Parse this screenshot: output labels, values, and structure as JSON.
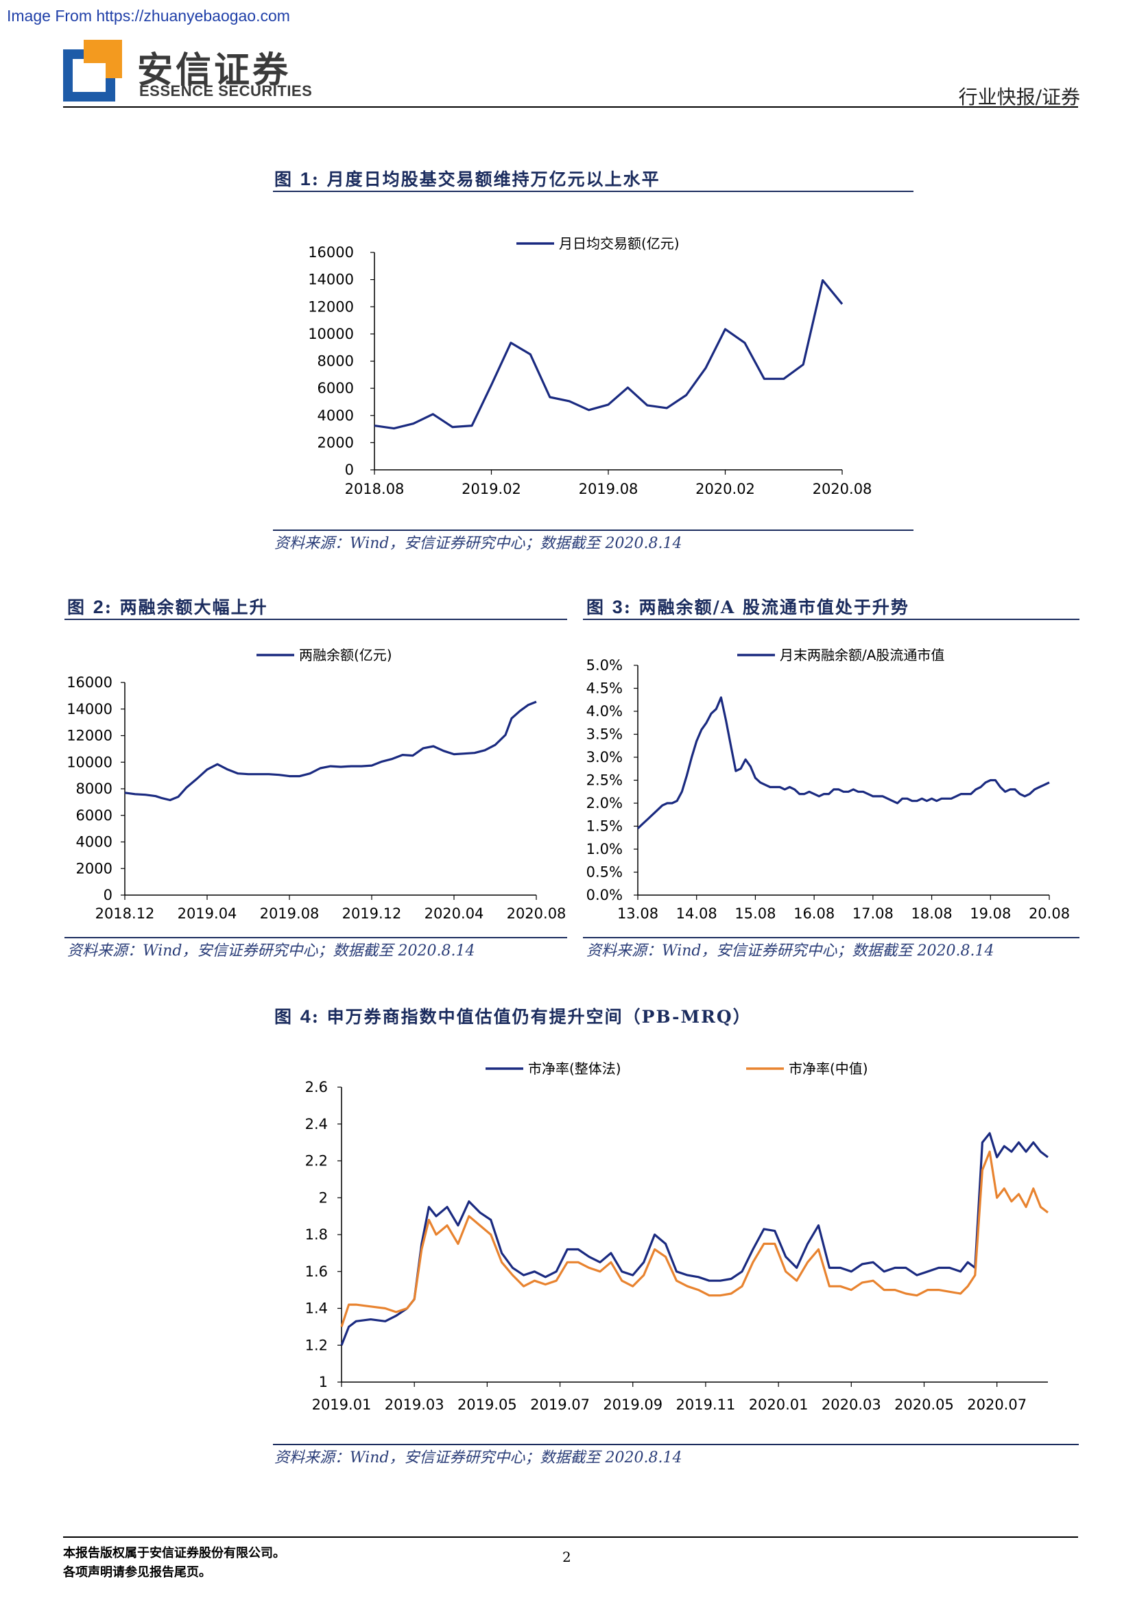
{
  "watermark": "Image From https://zhuanyebaogao.com",
  "header": {
    "logo_cn": "安信证券",
    "logo_en": "ESSENCE SECURITIES",
    "category": "行业快报/证券"
  },
  "figures": {
    "fig1": {
      "label": "图 ",
      "num": "1",
      "title": ": 月度日均股基交易额维持万亿元以上水平",
      "source": "资料来源：Wind，安信证券研究中心；数据截至 2020.8.14"
    },
    "fig2": {
      "label": "图 ",
      "num": "2",
      "title": ": 两融余额大幅上升",
      "source": "资料来源：Wind，安信证券研究中心；数据截至 2020.8.14"
    },
    "fig3": {
      "label": "图 ",
      "num": "3",
      "title": ": 两融余额/A 股流通市值处于升势",
      "source": "资料来源：Wind，安信证券研究中心；数据截至 2020.8.14"
    },
    "fig4": {
      "label": "图 ",
      "num": "4",
      "title": ": 申万券商指数中值估值仍有提升空间（PB-MRQ）",
      "source": "资料来源：Wind，安信证券研究中心；数据截至 2020.8.14"
    }
  },
  "footer": {
    "line1": "本报告版权属于安信证券股份有限公司。",
    "line2": "各项声明请参见报告尾页。",
    "page": "2"
  },
  "colors": {
    "navy": "#1a2a80",
    "orange": "#e8832f",
    "title_navy": "#1b2c5e",
    "logo_blue": "#1d5ba8",
    "logo_orange": "#f39a1f"
  },
  "chart_data": [
    {
      "id": "fig1",
      "type": "line",
      "ylim": [
        0,
        16000
      ],
      "yticks": [
        "0",
        "2000",
        "4000",
        "6000",
        "8000",
        "10000",
        "12000",
        "14000",
        "16000"
      ],
      "xticks": [
        "2018.08",
        "2019.02",
        "2019.08",
        "2020.02",
        "2020.08"
      ],
      "x_range": [
        0,
        24
      ],
      "series": [
        {
          "name": "月日均交易额(亿元)",
          "color": "#1a2a80",
          "values": [
            3250,
            3050,
            3400,
            4100,
            3150,
            3250,
            6250,
            9350,
            8500,
            5350,
            5050,
            4400,
            4800,
            6050,
            4750,
            4550,
            5500,
            7500,
            10350,
            9350,
            6700,
            6700,
            7750,
            13950,
            12200
          ]
        }
      ]
    },
    {
      "id": "fig2",
      "type": "line",
      "ylim": [
        0,
        16000
      ],
      "yticks": [
        "0",
        "2000",
        "4000",
        "6000",
        "8000",
        "10000",
        "12000",
        "14000",
        "16000"
      ],
      "xticks": [
        "2018.12",
        "2019.04",
        "2019.08",
        "2019.12",
        "2020.04",
        "2020.08"
      ],
      "x_range": [
        0,
        20
      ],
      "series": [
        {
          "name": "两融余额(亿元)",
          "color": "#1a2a80",
          "x": [
            0,
            0.5,
            1,
            1.5,
            1.8,
            2.2,
            2.6,
            3,
            3.5,
            4,
            4.5,
            5,
            5.5,
            6,
            6.5,
            7,
            7.5,
            8,
            8.5,
            9,
            9.5,
            10,
            10.5,
            11,
            11.5,
            12,
            12.5,
            13,
            13.5,
            14,
            14.5,
            15,
            15.5,
            16,
            16.5,
            17,
            17.5,
            18,
            18.5,
            18.8,
            19.2,
            19.6,
            20
          ],
          "values": [
            7700,
            7600,
            7550,
            7450,
            7300,
            7150,
            7400,
            8100,
            8750,
            9450,
            9850,
            9450,
            9150,
            9100,
            9100,
            9100,
            9050,
            8950,
            8950,
            9150,
            9550,
            9700,
            9650,
            9700,
            9700,
            9750,
            10050,
            10250,
            10550,
            10500,
            11050,
            11200,
            10850,
            10600,
            10650,
            10700,
            10900,
            11300,
            12050,
            13300,
            13850,
            14300,
            14550
          ]
        }
      ]
    },
    {
      "id": "fig3",
      "type": "line",
      "ylim": [
        0,
        5.0
      ],
      "yticks": [
        "0.0%",
        "0.5%",
        "1.0%",
        "1.5%",
        "2.0%",
        "2.5%",
        "3.0%",
        "3.5%",
        "4.0%",
        "4.5%",
        "5.0%"
      ],
      "xticks": [
        "13.08",
        "14.08",
        "15.08",
        "16.08",
        "17.08",
        "18.08",
        "19.08",
        "20.08"
      ],
      "x_range": [
        0,
        84
      ],
      "series": [
        {
          "name": "月末两融余额/A股流通市值",
          "color": "#1a2a80",
          "values": [
            1.45,
            1.55,
            1.65,
            1.75,
            1.85,
            1.95,
            2.0,
            2.0,
            2.05,
            2.25,
            2.6,
            3.0,
            3.35,
            3.6,
            3.75,
            3.95,
            4.05,
            4.3,
            3.8,
            3.25,
            2.7,
            2.75,
            2.95,
            2.8,
            2.55,
            2.45,
            2.4,
            2.35,
            2.35,
            2.35,
            2.3,
            2.35,
            2.3,
            2.2,
            2.2,
            2.25,
            2.2,
            2.15,
            2.2,
            2.2,
            2.3,
            2.3,
            2.25,
            2.25,
            2.3,
            2.25,
            2.25,
            2.2,
            2.15,
            2.15,
            2.15,
            2.1,
            2.05,
            2.0,
            2.1,
            2.1,
            2.05,
            2.05,
            2.1,
            2.05,
            2.1,
            2.05,
            2.1,
            2.1,
            2.1,
            2.15,
            2.2,
            2.2,
            2.2,
            2.3,
            2.35,
            2.45,
            2.5,
            2.5,
            2.35,
            2.25,
            2.3,
            2.3,
            2.2,
            2.15,
            2.2,
            2.3,
            2.35,
            2.4,
            2.45
          ]
        }
      ]
    },
    {
      "id": "fig4",
      "type": "line",
      "ylim": [
        1,
        2.6
      ],
      "yticks": [
        "1",
        "1.2",
        "1.4",
        "1.6",
        "1.8",
        "2",
        "2.2",
        "2.4",
        "2.6"
      ],
      "xticks": [
        "2019.01",
        "2019.03",
        "2019.05",
        "2019.07",
        "2019.09",
        "2019.11",
        "2020.01",
        "2020.03",
        "2020.05",
        "2020.07"
      ],
      "x_range": [
        0,
        19.4
      ],
      "series": [
        {
          "name": "市净率(整体法)",
          "color": "#1a2a80",
          "x": [
            0,
            0.2,
            0.4,
            0.8,
            1.2,
            1.5,
            1.8,
            2.0,
            2.2,
            2.4,
            2.6,
            2.9,
            3.2,
            3.5,
            3.8,
            4.1,
            4.4,
            4.7,
            5.0,
            5.3,
            5.6,
            5.9,
            6.2,
            6.5,
            6.8,
            7.1,
            7.4,
            7.7,
            8.0,
            8.3,
            8.6,
            8.9,
            9.2,
            9.5,
            9.8,
            10.1,
            10.4,
            10.7,
            11.0,
            11.3,
            11.6,
            11.9,
            12.2,
            12.5,
            12.8,
            13.1,
            13.4,
            13.7,
            14.0,
            14.3,
            14.6,
            14.9,
            15.2,
            15.5,
            15.8,
            16.1,
            16.4,
            16.7,
            17.0,
            17.2,
            17.4,
            17.6,
            17.8,
            18.0,
            18.2,
            18.4,
            18.6,
            18.8,
            19.0,
            19.2,
            19.4
          ],
          "values": [
            1.2,
            1.3,
            1.33,
            1.34,
            1.33,
            1.36,
            1.4,
            1.45,
            1.75,
            1.95,
            1.9,
            1.95,
            1.85,
            1.98,
            1.92,
            1.88,
            1.7,
            1.62,
            1.58,
            1.6,
            1.57,
            1.6,
            1.72,
            1.72,
            1.68,
            1.65,
            1.7,
            1.6,
            1.58,
            1.65,
            1.8,
            1.75,
            1.6,
            1.58,
            1.57,
            1.55,
            1.55,
            1.56,
            1.6,
            1.72,
            1.83,
            1.82,
            1.68,
            1.62,
            1.75,
            1.85,
            1.62,
            1.62,
            1.6,
            1.64,
            1.65,
            1.6,
            1.62,
            1.62,
            1.58,
            1.6,
            1.62,
            1.62,
            1.6,
            1.65,
            1.62,
            2.3,
            2.35,
            2.22,
            2.28,
            2.25,
            2.3,
            2.25,
            2.3,
            2.25,
            2.22
          ]
        },
        {
          "name": "市净率(中值)",
          "color": "#e8832f",
          "x": [
            0,
            0.2,
            0.4,
            0.8,
            1.2,
            1.5,
            1.8,
            2.0,
            2.2,
            2.4,
            2.6,
            2.9,
            3.2,
            3.5,
            3.8,
            4.1,
            4.4,
            4.7,
            5.0,
            5.3,
            5.6,
            5.9,
            6.2,
            6.5,
            6.8,
            7.1,
            7.4,
            7.7,
            8.0,
            8.3,
            8.6,
            8.9,
            9.2,
            9.5,
            9.8,
            10.1,
            10.4,
            10.7,
            11.0,
            11.3,
            11.6,
            11.9,
            12.2,
            12.5,
            12.8,
            13.1,
            13.4,
            13.7,
            14.0,
            14.3,
            14.6,
            14.9,
            15.2,
            15.5,
            15.8,
            16.1,
            16.4,
            16.7,
            17.0,
            17.2,
            17.4,
            17.6,
            17.8,
            18.0,
            18.2,
            18.4,
            18.6,
            18.8,
            19.0,
            19.2,
            19.4
          ],
          "values": [
            1.3,
            1.42,
            1.42,
            1.41,
            1.4,
            1.38,
            1.4,
            1.45,
            1.72,
            1.88,
            1.8,
            1.85,
            1.75,
            1.9,
            1.85,
            1.8,
            1.65,
            1.58,
            1.52,
            1.55,
            1.53,
            1.55,
            1.65,
            1.65,
            1.62,
            1.6,
            1.65,
            1.55,
            1.52,
            1.58,
            1.72,
            1.68,
            1.55,
            1.52,
            1.5,
            1.47,
            1.47,
            1.48,
            1.52,
            1.65,
            1.75,
            1.75,
            1.6,
            1.55,
            1.65,
            1.72,
            1.52,
            1.52,
            1.5,
            1.54,
            1.55,
            1.5,
            1.5,
            1.48,
            1.47,
            1.5,
            1.5,
            1.49,
            1.48,
            1.52,
            1.58,
            2.15,
            2.25,
            2.0,
            2.05,
            1.98,
            2.02,
            1.95,
            2.05,
            1.95,
            1.92
          ]
        }
      ]
    }
  ]
}
